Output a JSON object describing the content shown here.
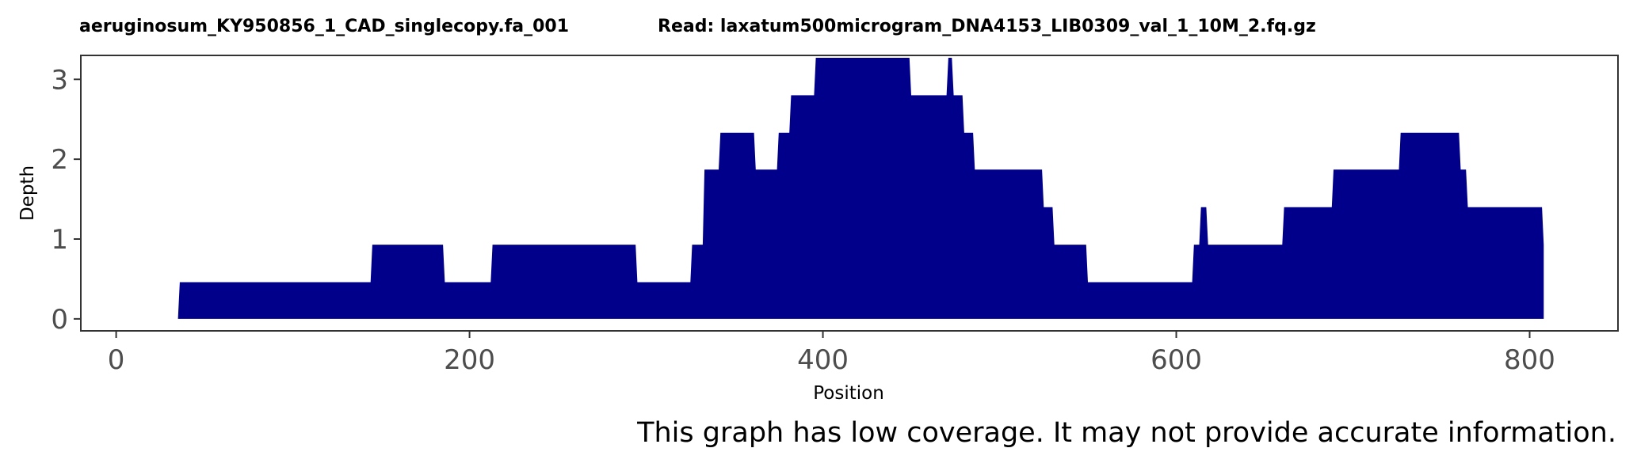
{
  "chart_data": {
    "type": "area",
    "title_ref": "aeruginosum_KY950856_1_CAD_singlecopy.fa_001",
    "title_read": "Read: laxatum500microgram_DNA4153_LIB0309_val_1_10M_2.fq.gz",
    "xlabel": "Position",
    "ylabel": "Depth",
    "xlim": [
      -20,
      850
    ],
    "ylim": [
      -0.15,
      3.3
    ],
    "xticks": [
      0,
      200,
      400,
      600,
      800
    ],
    "yticks": [
      0,
      1,
      2,
      3
    ],
    "fill_color": "#00008b",
    "grid": false,
    "x": [
      35,
      36,
      144,
      145,
      185,
      186,
      212,
      213,
      294,
      295,
      325,
      326,
      332,
      333,
      341,
      342,
      361,
      362,
      374,
      375,
      381,
      382,
      395,
      396,
      449,
      450,
      470,
      471,
      473,
      474,
      479,
      480,
      485,
      486,
      492,
      493,
      524,
      525,
      530,
      531,
      549,
      550,
      609,
      610,
      613,
      614,
      617,
      618,
      660,
      661,
      688,
      689,
      726,
      727,
      760,
      761,
      764,
      765,
      807,
      808
    ],
    "y": [
      0,
      0.46,
      0.46,
      0.93,
      0.93,
      0.46,
      0.46,
      0.93,
      0.93,
      0.46,
      0.46,
      0.93,
      0.93,
      1.87,
      1.87,
      2.33,
      2.33,
      1.87,
      1.87,
      2.33,
      2.33,
      2.8,
      2.8,
      3.27,
      3.27,
      2.8,
      2.8,
      3.27,
      3.27,
      2.8,
      2.8,
      2.33,
      2.33,
      1.87,
      1.87,
      1.87,
      1.87,
      1.4,
      1.4,
      0.93,
      0.93,
      0.46,
      0.46,
      0.93,
      0.93,
      1.4,
      1.4,
      0.93,
      0.93,
      1.4,
      1.4,
      1.87,
      1.87,
      2.33,
      2.33,
      1.87,
      1.87,
      1.4,
      1.4,
      0.93
    ],
    "annotation": "This graph has low coverage. It may not provide accurate information."
  }
}
